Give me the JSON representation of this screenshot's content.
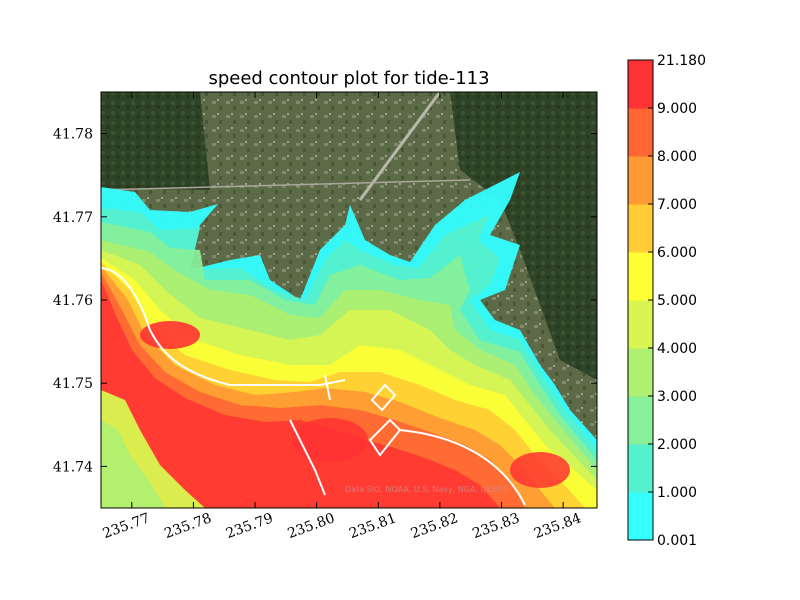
{
  "chart_data": {
    "type": "heatmap",
    "title": "speed contour plot for tide-113",
    "xlabel": "",
    "ylabel": "",
    "xlim": [
      235.765,
      235.8455
    ],
    "ylim": [
      41.735,
      41.785
    ],
    "x_ticks": [
      235.77,
      235.78,
      235.79,
      235.8,
      235.81,
      235.82,
      235.83,
      235.84
    ],
    "x_tick_labels": [
      "235.77",
      "235.78",
      "235.79",
      "235.80",
      "235.81",
      "235.82",
      "235.83",
      "235.84"
    ],
    "y_ticks": [
      41.74,
      41.75,
      41.76,
      41.77,
      41.78
    ],
    "y_tick_labels": [
      "41.74",
      "41.75",
      "41.76",
      "41.77",
      "41.78"
    ],
    "colorbar": {
      "levels": [
        0.001,
        1.0,
        2.0,
        3.0,
        4.0,
        5.0,
        6.0,
        7.0,
        8.0,
        9.0,
        21.18
      ],
      "labels": [
        "0.001",
        "1.000",
        "2.000",
        "3.000",
        "4.000",
        "5.000",
        "6.000",
        "7.000",
        "8.000",
        "9.000",
        "21.180"
      ],
      "colors": [
        "#33ffff",
        "#55f0cc",
        "#88f099",
        "#b0f070",
        "#d8f550",
        "#ffff33",
        "#ffcc33",
        "#ff9933",
        "#ff6633",
        "#ff4422"
      ],
      "top_color": "#ff3333"
    },
    "map_attribution": "Data SIO, NOAA, U.S. Navy, NGA, GEBCO",
    "grid": false,
    "legend": "colorbar-right"
  }
}
